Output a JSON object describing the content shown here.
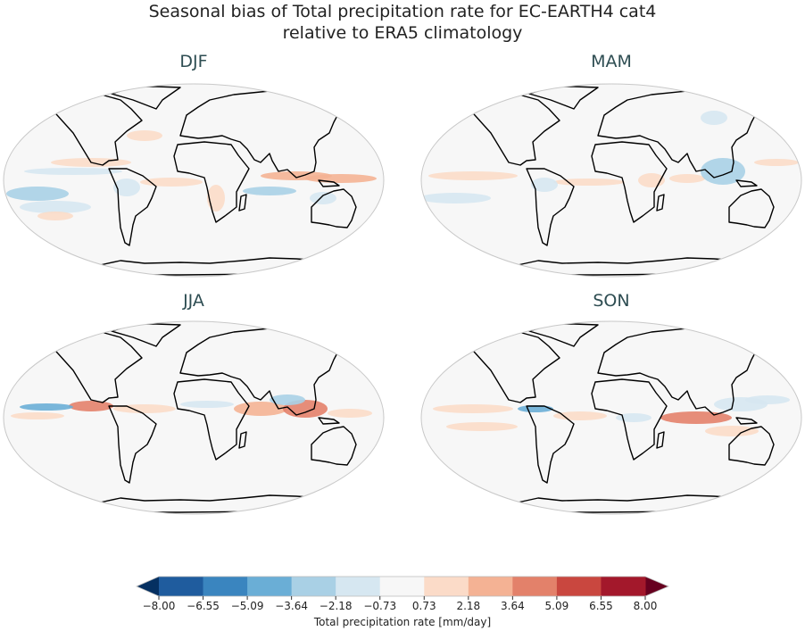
{
  "title_line1": "Seasonal bias of Total precipitation rate for EC-EARTH4 cat4",
  "title_line2": "relative to ERA5 climatology",
  "panels": [
    {
      "season": "DJF"
    },
    {
      "season": "MAM"
    },
    {
      "season": "JJA"
    },
    {
      "season": "SON"
    }
  ],
  "colorbar": {
    "label": "Total precipitation rate [mm/day]",
    "ticks": [
      "−8.00",
      "−6.55",
      "−5.09",
      "−3.64",
      "−2.18",
      "−0.73",
      "0.73",
      "2.18",
      "3.64",
      "5.09",
      "6.55",
      "8.00"
    ],
    "colors": [
      "#1f5c9e",
      "#3a85bf",
      "#6aaed6",
      "#a9d0e5",
      "#d6e7f1",
      "#f7f7f7",
      "#fbdbc8",
      "#f4b294",
      "#e3816a",
      "#c9473f",
      "#a3182b"
    ],
    "extend_low_color": "#053061",
    "extend_high_color": "#67001f",
    "colormap": "RdBu_r",
    "extend": "both"
  },
  "map_style": {
    "background": "#f7f7f7",
    "coastline": "#000000",
    "border": "#c8c8c8",
    "projection": "Robinson"
  }
}
